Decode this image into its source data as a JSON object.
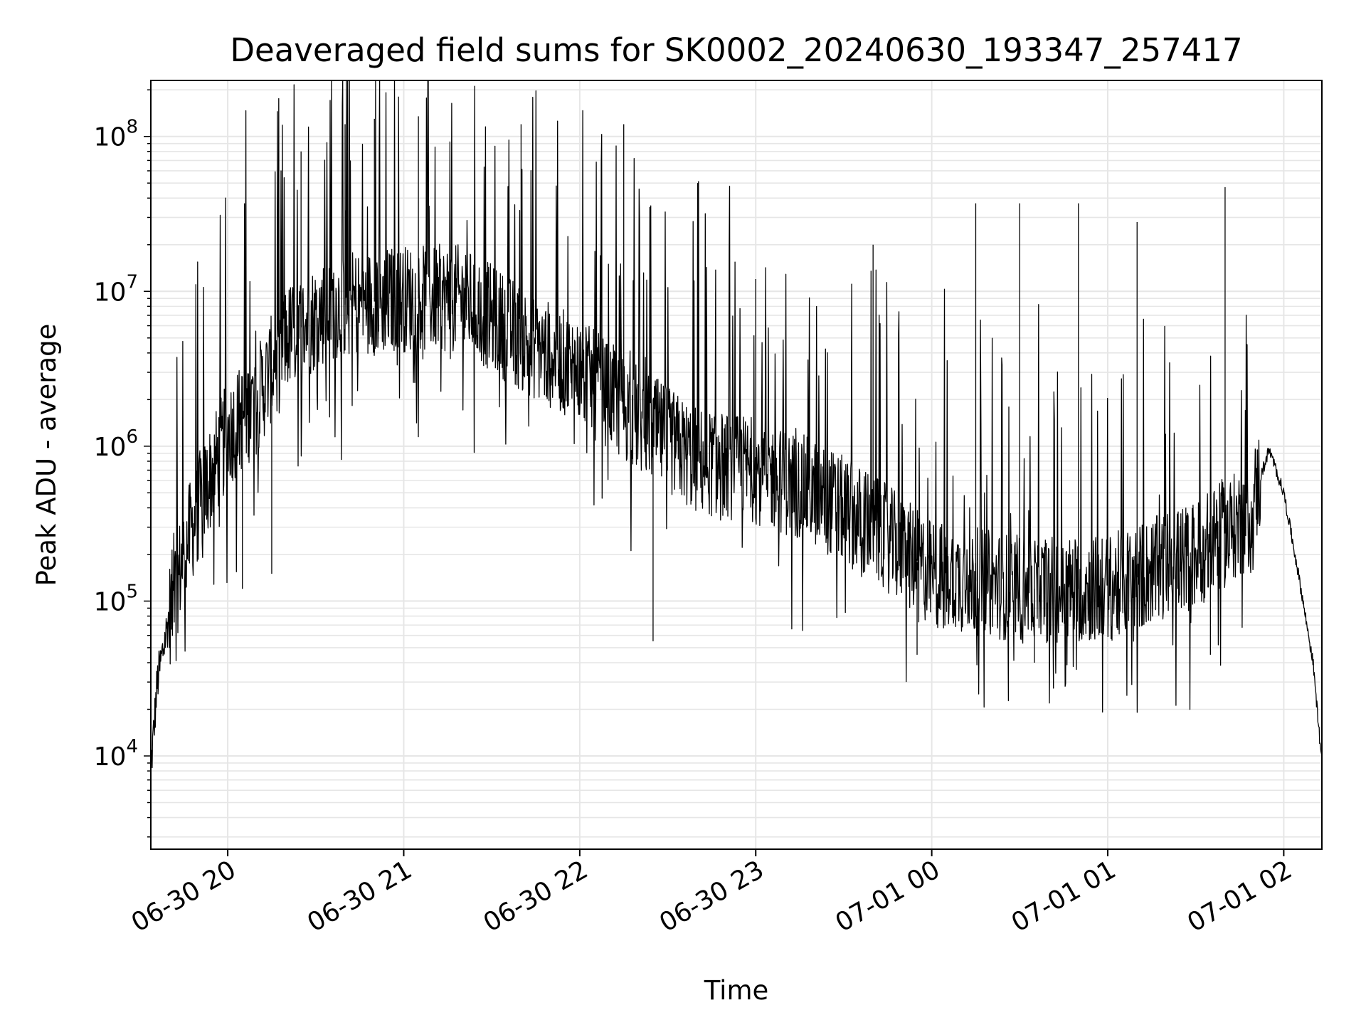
{
  "chart_data": {
    "type": "line",
    "title": "Deaveraged field sums for SK0002_20240630_193347_257417",
    "xlabel": "Time",
    "ylabel": "Peak ADU - average",
    "yscale": "log",
    "ylim": [
      2500,
      230000000
    ],
    "xlim": [
      "2024-06-30 19:33:47",
      "2024-07-01 02:13:00"
    ],
    "grid": "on",
    "grid_minor": "on (y)",
    "legend": "none",
    "line_color": "#000000",
    "x_ticks": [
      {
        "time": "2024-06-30 20:00",
        "label": "06-30 20"
      },
      {
        "time": "2024-06-30 21:00",
        "label": "06-30 21"
      },
      {
        "time": "2024-06-30 22:00",
        "label": "06-30 22"
      },
      {
        "time": "2024-06-30 23:00",
        "label": "06-30 23"
      },
      {
        "time": "2024-07-01 00:00",
        "label": "07-01 00"
      },
      {
        "time": "2024-07-01 01:00",
        "label": "07-01 01"
      },
      {
        "time": "2024-07-01 02:00",
        "label": "07-01 02"
      }
    ],
    "y_ticks": [
      {
        "value": 10000,
        "base": "10",
        "exp": "4"
      },
      {
        "value": 100000,
        "base": "10",
        "exp": "5"
      },
      {
        "value": 1000000,
        "base": "10",
        "exp": "6"
      },
      {
        "value": 10000000,
        "base": "10",
        "exp": "7"
      },
      {
        "value": 100000000,
        "base": "10",
        "exp": "8"
      }
    ],
    "series": [
      {
        "envelope_baseline": [
          {
            "t": "2024-06-30 19:33:47",
            "y": 8000
          },
          {
            "t": "2024-06-30 19:36",
            "y": 30000
          },
          {
            "t": "2024-06-30 19:40",
            "y": 80000
          },
          {
            "t": "2024-06-30 19:45",
            "y": 200000
          },
          {
            "t": "2024-06-30 19:50",
            "y": 400000
          },
          {
            "t": "2024-06-30 19:55",
            "y": 700000
          },
          {
            "t": "2024-06-30 20:00",
            "y": 1200000
          },
          {
            "t": "2024-06-30 20:10",
            "y": 2000000
          },
          {
            "t": "2024-06-30 20:20",
            "y": 5000000
          },
          {
            "t": "2024-06-30 20:35",
            "y": 8000000
          },
          {
            "t": "2024-06-30 21:00",
            "y": 9000000
          },
          {
            "t": "2024-06-30 21:20",
            "y": 9000000
          },
          {
            "t": "2024-06-30 21:40",
            "y": 5000000
          },
          {
            "t": "2024-06-30 22:00",
            "y": 3000000
          },
          {
            "t": "2024-06-30 22:20",
            "y": 1500000
          },
          {
            "t": "2024-06-30 22:40",
            "y": 800000
          },
          {
            "t": "2024-06-30 23:00",
            "y": 700000
          },
          {
            "t": "2024-06-30 23:20",
            "y": 500000
          },
          {
            "t": "2024-06-30 23:40",
            "y": 300000
          },
          {
            "t": "2024-07-01 00:00",
            "y": 150000
          },
          {
            "t": "2024-07-01 00:30",
            "y": 120000
          },
          {
            "t": "2024-07-01 01:00",
            "y": 120000
          },
          {
            "t": "2024-07-01 01:30",
            "y": 200000
          },
          {
            "t": "2024-07-01 01:48",
            "y": 350000
          },
          {
            "t": "2024-07-01 01:55",
            "y": 950000
          },
          {
            "t": "2024-07-01 02:00",
            "y": 500000
          },
          {
            "t": "2024-07-01 02:05",
            "y": 150000
          },
          {
            "t": "2024-07-01 02:10",
            "y": 40000
          },
          {
            "t": "2024-07-01 02:13",
            "y": 9000
          }
        ],
        "peaks": [
          {
            "t": "2024-06-30 20:25",
            "y": 80000000
          },
          {
            "t": "2024-06-30 20:40",
            "y": 120000000
          },
          {
            "t": "2024-06-30 20:50",
            "y": 130000000
          },
          {
            "t": "2024-06-30 21:05",
            "y": 135000000
          },
          {
            "t": "2024-06-30 21:40",
            "y": 120000000
          },
          {
            "t": "2024-06-30 22:15",
            "y": 120000000
          },
          {
            "t": "2024-06-30 23:00",
            "y": 12000000
          },
          {
            "t": "2024-06-30 23:40",
            "y": 20000000
          },
          {
            "t": "2024-07-01 00:15",
            "y": 37000000
          },
          {
            "t": "2024-07-01 00:30",
            "y": 37000000
          },
          {
            "t": "2024-07-01 00:50",
            "y": 37000000
          },
          {
            "t": "2024-07-01 01:10",
            "y": 28000000
          },
          {
            "t": "2024-07-01 01:40",
            "y": 47000000
          }
        ],
        "troughs": [
          {
            "t": "2024-06-30 20:05",
            "y": 120000
          },
          {
            "t": "2024-06-30 20:15",
            "y": 150000
          },
          {
            "t": "2024-06-30 22:25",
            "y": 55000
          },
          {
            "t": "2024-06-30 23:55",
            "y": 45000
          },
          {
            "t": "2024-07-01 00:35",
            "y": 40000
          },
          {
            "t": "2024-07-01 01:35",
            "y": 45000
          }
        ]
      }
    ]
  }
}
